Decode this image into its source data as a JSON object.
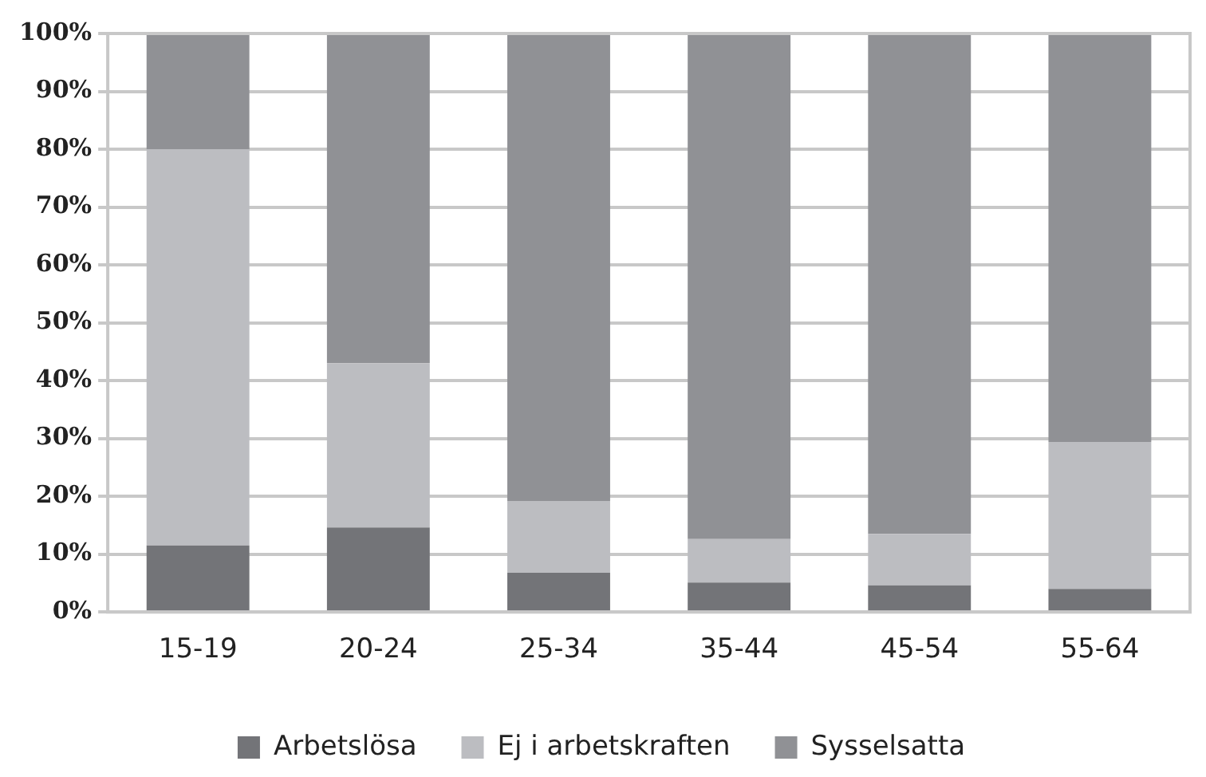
{
  "chart_data": {
    "type": "bar",
    "stacked": true,
    "categories": [
      "15-19",
      "20-24",
      "25-34",
      "35-44",
      "45-54",
      "55-64"
    ],
    "series": [
      {
        "name": "Arbetslösa",
        "color": "#737478",
        "values": [
          11.5,
          14.6,
          6.8,
          5.1,
          4.6,
          4.0
        ]
      },
      {
        "name": "Ej i arbetskraften",
        "color": "#bcbdc1",
        "values": [
          68.5,
          28.4,
          12.4,
          7.5,
          8.9,
          25.4
        ]
      },
      {
        "name": "Sysselsatta",
        "color": "#909195",
        "values": [
          20,
          57,
          80.8,
          87.4,
          86.5,
          70.6
        ]
      }
    ],
    "ylim": [
      0,
      100
    ],
    "yticks": [
      {
        "value": 0,
        "label": "0%"
      },
      {
        "value": 10,
        "label": "10%"
      },
      {
        "value": 20,
        "label": "20%"
      },
      {
        "value": 30,
        "label": "30%"
      },
      {
        "value": 40,
        "label": "40%"
      },
      {
        "value": 50,
        "label": "50%"
      },
      {
        "value": 60,
        "label": "60%"
      },
      {
        "value": 70,
        "label": "70%"
      },
      {
        "value": 80,
        "label": "80%"
      },
      {
        "value": 90,
        "label": "90%"
      },
      {
        "value": 100,
        "label": "100%"
      }
    ],
    "grid": "y",
    "legend": "bottom"
  }
}
